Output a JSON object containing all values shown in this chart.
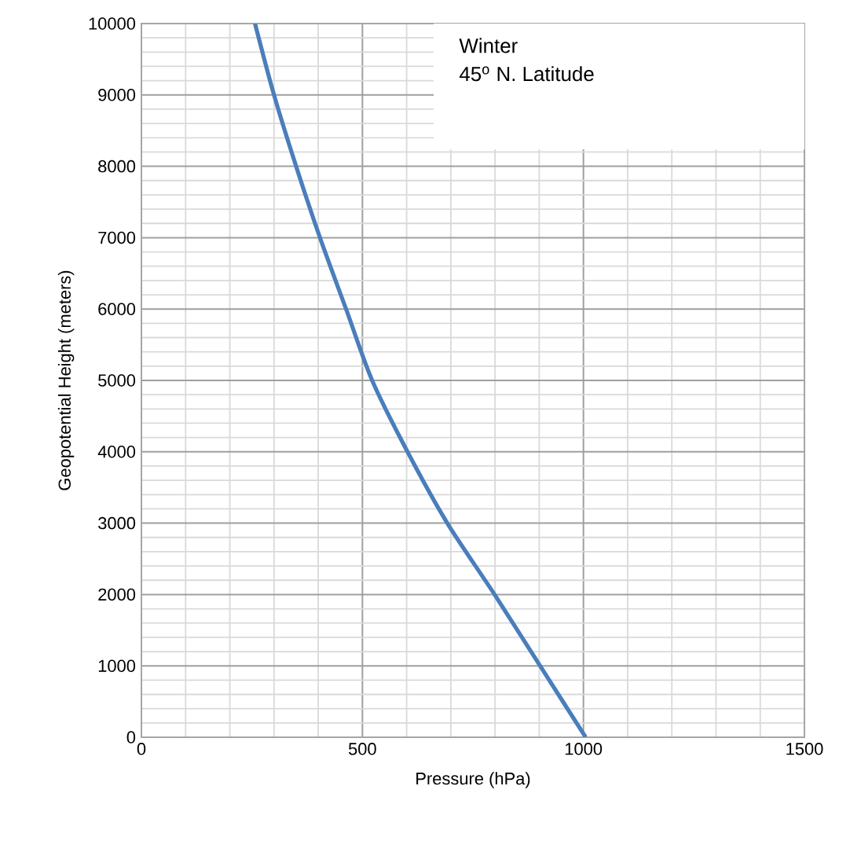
{
  "chart_data": {
    "type": "line",
    "xlabel": "Pressure (hPa)",
    "ylabel": "Geopotential Height (meters)",
    "x": [
      1005,
      902,
      799,
      692,
      602,
      522,
      463,
      404,
      350,
      300,
      257
    ],
    "series": [
      {
        "color": "#4a7ebb",
        "values": [
          0,
          1000,
          2000,
          3000,
          4000,
          5000,
          6000,
          7000,
          8000,
          9000,
          10000
        ]
      }
    ],
    "xlim": [
      0,
      1500
    ],
    "ylim": [
      0,
      10000
    ],
    "xticks": [
      0,
      500,
      1000,
      1500
    ],
    "yticks": [
      0,
      1000,
      2000,
      3000,
      4000,
      5000,
      6000,
      7000,
      8000,
      9000,
      10000
    ],
    "grid": true,
    "line_style": "solid",
    "annotations": [
      "Winter",
      "45$^{o}$ N. Latitude"
    ]
  }
}
